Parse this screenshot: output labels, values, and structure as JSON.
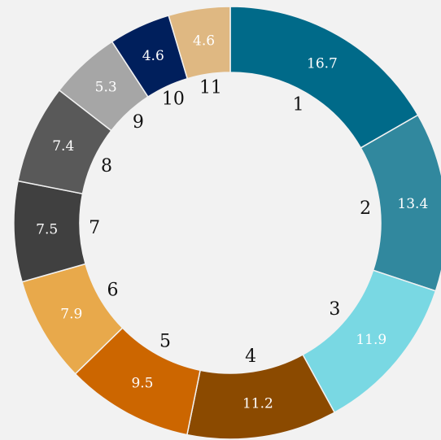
{
  "chart_data": {
    "type": "pie",
    "categories": [
      "1",
      "2",
      "3",
      "4",
      "5",
      "6",
      "7",
      "8",
      "9",
      "10",
      "11"
    ],
    "values": [
      16.7,
      13.4,
      11.9,
      11.2,
      9.5,
      7.9,
      7.5,
      7.4,
      5.3,
      4.6,
      4.6
    ],
    "colors": [
      "#006a89",
      "#31889e",
      "#79d8e3",
      "#8b4a00",
      "#cc6600",
      "#e8a94b",
      "#404040",
      "#595959",
      "#a6a6a6",
      "#001f5c",
      "#dfb882"
    ]
  }
}
